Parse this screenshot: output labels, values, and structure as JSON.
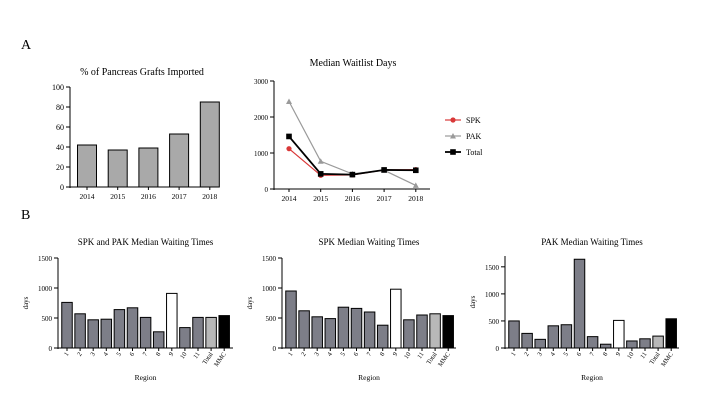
{
  "panels": {
    "a": "A",
    "b": "B"
  },
  "colors": {
    "gray_bar": "#a9a9a9",
    "dark_bar": "#7d7e88",
    "white_bar": "#ffffff",
    "black_bar": "#000000",
    "spk": "#d93838",
    "pak": "#9a9a9a",
    "total": "#000000"
  },
  "chart_data": [
    {
      "id": "imported",
      "type": "bar",
      "title": "% of Pancreas Grafts Imported",
      "xlabel": "",
      "ylabel": "",
      "categories": [
        "2014",
        "2015",
        "2016",
        "2017",
        "2018"
      ],
      "values": [
        42,
        37,
        39,
        53,
        85
      ],
      "ylim": [
        0,
        100
      ],
      "yticks": [
        0,
        20,
        40,
        60,
        80,
        100
      ],
      "bar_color": "#a9a9a9"
    },
    {
      "id": "waitlist",
      "type": "line",
      "title": "Median Waitlist Days",
      "xlabel": "",
      "ylabel": "",
      "x": [
        "2014",
        "2015",
        "2016",
        "2017",
        "2018"
      ],
      "ylim": [
        0,
        3000
      ],
      "yticks": [
        0,
        1000,
        2000,
        3000
      ],
      "legend_position": "right",
      "series": [
        {
          "name": "SPK",
          "values": [
            1120,
            380,
            390,
            530,
            540
          ],
          "color": "#d93838",
          "marker": "circle"
        },
        {
          "name": "PAK",
          "values": [
            2430,
            770,
            420,
            520,
            100
          ],
          "color": "#9a9a9a",
          "marker": "triangle"
        },
        {
          "name": "Total",
          "values": [
            1460,
            420,
            400,
            530,
            520
          ],
          "color": "#000000",
          "marker": "square"
        }
      ]
    },
    {
      "id": "spk_pak",
      "type": "bar",
      "title": "SPK and PAK Median Waiting Times",
      "xlabel": "Region",
      "ylabel": "days",
      "categories": [
        "1",
        "2",
        "3",
        "4",
        "5",
        "6",
        "7",
        "8",
        "9",
        "10",
        "11",
        "Total",
        "MMC"
      ],
      "values": [
        760,
        570,
        470,
        480,
        640,
        670,
        510,
        270,
        910,
        340,
        510,
        510,
        540
      ],
      "bar_styles": [
        "dark",
        "dark",
        "dark",
        "dark",
        "dark",
        "dark",
        "dark",
        "dark",
        "white",
        "dark",
        "dark",
        "light",
        "black"
      ],
      "ylim": [
        0,
        1500
      ],
      "yticks": [
        0,
        500,
        1000,
        1500
      ]
    },
    {
      "id": "spk",
      "type": "bar",
      "title": "SPK Median Waiting Times",
      "xlabel": "Region",
      "ylabel": "days",
      "categories": [
        "1",
        "2",
        "3",
        "4",
        "5",
        "6",
        "7",
        "8",
        "9",
        "10",
        "11",
        "Total",
        "MMC"
      ],
      "values": [
        950,
        620,
        520,
        490,
        680,
        660,
        600,
        380,
        980,
        470,
        550,
        570,
        540
      ],
      "bar_styles": [
        "dark",
        "dark",
        "dark",
        "dark",
        "dark",
        "dark",
        "dark",
        "dark",
        "white",
        "dark",
        "dark",
        "light",
        "black"
      ],
      "ylim": [
        0,
        1500
      ],
      "yticks": [
        0,
        500,
        1000,
        1500
      ]
    },
    {
      "id": "pak",
      "type": "bar",
      "title": "PAK Median Waiting Times",
      "xlabel": "Region",
      "ylabel": "days",
      "categories": [
        "1",
        "2",
        "3",
        "4",
        "5",
        "6",
        "7",
        "8",
        "9",
        "10",
        "11",
        "Total",
        "MMC"
      ],
      "values": [
        500,
        270,
        160,
        410,
        430,
        1640,
        210,
        70,
        510,
        130,
        170,
        220,
        540
      ],
      "bar_styles": [
        "dark",
        "dark",
        "dark",
        "dark",
        "dark",
        "dark",
        "dark",
        "dark",
        "white",
        "dark",
        "dark",
        "light",
        "black"
      ],
      "ylim": [
        0,
        1700
      ],
      "yticks": [
        0,
        500,
        1000,
        1500
      ]
    }
  ]
}
